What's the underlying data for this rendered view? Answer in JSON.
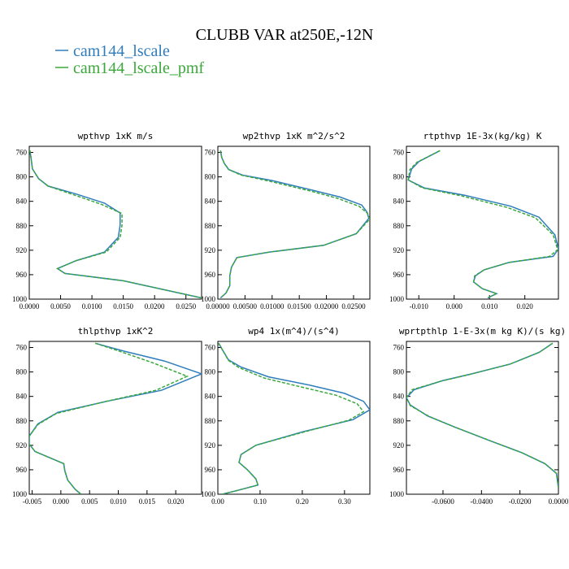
{
  "figure": {
    "title": "CLUBB VAR at250E,-12N",
    "legend": [
      {
        "name": "cam144_lscale",
        "color": "#2f7dbd",
        "dash": "solid"
      },
      {
        "name": "cam144_lscale_pmf",
        "color": "#3aa83a",
        "dash": "dashed"
      }
    ]
  },
  "chart_data": [
    {
      "type": "line",
      "title": "wpthvp  1xK m/s",
      "xlim": [
        0,
        0.0275
      ],
      "ylim": [
        1000,
        750
      ],
      "xticks": [
        0,
        0.005,
        0.01,
        0.015,
        0.02,
        0.025
      ],
      "xtick_labels": [
        "0.0000",
        "0.0050",
        "0.0100",
        "0.0150",
        "0.0200",
        "0.0250"
      ],
      "yticks": [
        760,
        800,
        840,
        880,
        920,
        960,
        1000
      ],
      "yticks_right": false,
      "series": [
        {
          "name": "cam144_lscale",
          "x": [
            0.0001,
            0.0003,
            0.0005,
            0.0015,
            0.003,
            0.0075,
            0.012,
            0.0145,
            0.0145,
            0.0142,
            0.012,
            0.0075,
            0.0045,
            0.0057,
            0.015,
            0.0275
          ],
          "y": [
            757,
            770,
            787,
            803,
            815,
            828,
            843,
            859,
            879,
            899,
            923,
            937,
            950,
            958,
            970,
            998
          ]
        },
        {
          "name": "cam144_lscale_pmf",
          "x": [
            0.0001,
            0.0003,
            0.0005,
            0.0015,
            0.003,
            0.007,
            0.0115,
            0.0148,
            0.0148,
            0.0145,
            0.0123,
            0.0075,
            0.0045,
            0.0057,
            0.015,
            0.0275
          ],
          "y": [
            757,
            770,
            787,
            803,
            815,
            829,
            845,
            860,
            879,
            899,
            923,
            937,
            950,
            958,
            970,
            998
          ]
        }
      ]
    },
    {
      "type": "line",
      "title": "wp2thvp  1xK m^2/s^2",
      "xlim": [
        0,
        0.028
      ],
      "ylim": [
        1000,
        750
      ],
      "xticks": [
        0,
        0.005,
        0.01,
        0.015,
        0.02,
        0.025
      ],
      "xtick_labels": [
        "0.00000",
        "0.00500",
        "0.01000",
        "0.01500",
        "0.02000",
        "0.02500"
      ],
      "yticks": [
        760,
        800,
        840,
        880,
        920,
        960,
        1000
      ],
      "yticks_right": false,
      "series": [
        {
          "name": "cam144_lscale",
          "x": [
            0.0005,
            0.0007,
            0.0012,
            0.002,
            0.0045,
            0.01,
            0.0175,
            0.0225,
            0.0265,
            0.0275,
            0.0278,
            0.0255,
            0.0195,
            0.0095,
            0.0035,
            0.0025,
            0.0022,
            0.0022,
            0.0015,
            0.0005
          ],
          "y": [
            757,
            768,
            778,
            788,
            797,
            806,
            822,
            833,
            846,
            858,
            868,
            893,
            912,
            923,
            932,
            948,
            962,
            978,
            990,
            998
          ]
        },
        {
          "name": "cam144_lscale_pmf",
          "x": [
            0.0005,
            0.0007,
            0.0012,
            0.002,
            0.0042,
            0.0095,
            0.017,
            0.022,
            0.026,
            0.0275,
            0.028,
            0.0255,
            0.0195,
            0.0095,
            0.0035,
            0.0025,
            0.0022,
            0.0022,
            0.0015,
            0.0005
          ],
          "y": [
            757,
            768,
            778,
            788,
            797,
            807,
            823,
            835,
            848,
            859,
            869,
            893,
            912,
            923,
            932,
            948,
            962,
            978,
            990,
            998
          ]
        }
      ]
    },
    {
      "type": "line",
      "title": "rtpthvp  1E-3x(kg/kg) K",
      "xlim": [
        -0.0135,
        0.0295
      ],
      "ylim": [
        1000,
        750
      ],
      "xticks": [
        -0.01,
        0,
        0.01,
        0.02
      ],
      "xtick_labels": [
        "-0.010",
        "0.000",
        "0.010",
        "0.020"
      ],
      "yticks": [
        760,
        800,
        840,
        880,
        920,
        960,
        1000
      ],
      "yticks_right": false,
      "series": [
        {
          "name": "cam144_lscale",
          "x": [
            -0.004,
            -0.01,
            -0.012,
            -0.013,
            -0.0085,
            0.003,
            0.016,
            0.024,
            0.0285,
            0.0295,
            0.028,
            0.0155,
            0.0085,
            0.006,
            0.0055,
            0.008,
            0.012,
            0.0095
          ],
          "y": [
            757,
            775,
            787,
            805,
            818,
            830,
            848,
            866,
            895,
            918,
            930,
            940,
            952,
            962,
            972,
            983,
            991,
            998
          ]
        },
        {
          "name": "cam144_lscale_pmf",
          "x": [
            -0.004,
            -0.0105,
            -0.0125,
            -0.013,
            -0.009,
            0.002,
            0.015,
            0.023,
            0.028,
            0.0293,
            0.027,
            0.0155,
            0.0085,
            0.0058,
            0.0055,
            0.008,
            0.012,
            0.0095
          ],
          "y": [
            757,
            776,
            788,
            805,
            818,
            831,
            850,
            867,
            895,
            919,
            930,
            940,
            952,
            962,
            972,
            983,
            991,
            998
          ]
        }
      ]
    },
    {
      "type": "line",
      "title": "thlpthvp  1xK^2",
      "xlim": [
        -0.0055,
        0.0245
      ],
      "ylim": [
        1000,
        750
      ],
      "xticks": [
        -0.005,
        0,
        0.005,
        0.01,
        0.015,
        0.02
      ],
      "xtick_labels": [
        "-0.005",
        "0.000",
        "0.005",
        "0.010",
        "0.015",
        "0.020"
      ],
      "yticks": [
        760,
        800,
        840,
        880,
        920,
        960,
        1000
      ],
      "yticks_right": false,
      "series": [
        {
          "name": "cam144_lscale",
          "x": [
            0.006,
            0.011,
            0.018,
            0.0245,
            0.0175,
            0.008,
            -0.0005,
            -0.004,
            -0.0055,
            -0.0055,
            -0.0045,
            0.0005,
            0.0007,
            0.0012,
            0.0025,
            0.0035
          ],
          "y": [
            753,
            766,
            782,
            803,
            830,
            848,
            866,
            885,
            905,
            918,
            930,
            950,
            962,
            977,
            992,
            1000
          ]
        },
        {
          "name": "cam144_lscale_pmf",
          "x": [
            0.006,
            0.0105,
            0.016,
            0.022,
            0.0165,
            0.0075,
            -0.0008,
            -0.004,
            -0.0055,
            -0.0055,
            -0.0045,
            0.0005,
            0.0007,
            0.0012,
            0.0025,
            0.0035
          ],
          "y": [
            753,
            767,
            785,
            807,
            830,
            849,
            868,
            886,
            905,
            918,
            930,
            950,
            962,
            977,
            992,
            1000
          ]
        }
      ]
    },
    {
      "type": "line",
      "title": "wp4  1x(m^4)/(s^4)",
      "xlim": [
        0,
        0.36
      ],
      "ylim": [
        1000,
        750
      ],
      "xticks": [
        0,
        0.1,
        0.2,
        0.3
      ],
      "xtick_labels": [
        "0.00",
        "0.10",
        "0.20",
        "0.30"
      ],
      "yticks": [
        760,
        800,
        840,
        880,
        920,
        960,
        1000
      ],
      "yticks_right": false,
      "series": [
        {
          "name": "cam144_lscale",
          "x": [
            0.002,
            0.012,
            0.025,
            0.055,
            0.12,
            0.22,
            0.3,
            0.345,
            0.36,
            0.32,
            0.2,
            0.09,
            0.055,
            0.05,
            0.07,
            0.09,
            0.095,
            0.04,
            0.01
          ],
          "y": [
            753,
            765,
            780,
            792,
            808,
            822,
            835,
            848,
            862,
            878,
            898,
            920,
            935,
            948,
            960,
            975,
            985,
            995,
            1000
          ]
        },
        {
          "name": "cam144_lscale_pmf",
          "x": [
            0.002,
            0.012,
            0.025,
            0.05,
            0.11,
            0.2,
            0.28,
            0.33,
            0.345,
            0.31,
            0.2,
            0.09,
            0.055,
            0.05,
            0.07,
            0.09,
            0.095,
            0.04,
            0.01
          ],
          "y": [
            753,
            765,
            781,
            793,
            810,
            825,
            838,
            852,
            865,
            879,
            899,
            920,
            935,
            948,
            960,
            975,
            985,
            995,
            1000
          ]
        }
      ]
    },
    {
      "type": "line",
      "title": "wprtpthlp  1-E-3x(m kg K)/(s kg)",
      "xlim": [
        -0.079,
        0
      ],
      "ylim": [
        1000,
        750
      ],
      "xticks": [
        -0.06,
        -0.04,
        -0.02,
        0
      ],
      "xtick_labels": [
        "-0.0600",
        "-0.0400",
        "-0.0200",
        "0.0000"
      ],
      "yticks": [
        760,
        800,
        840,
        880,
        920,
        960,
        1000
      ],
      "yticks_right": true,
      "series": [
        {
          "name": "cam144_lscale",
          "x": [
            -0.003,
            -0.01,
            -0.025,
            -0.045,
            -0.06,
            -0.075,
            -0.079,
            -0.077,
            -0.068,
            -0.054,
            -0.036,
            -0.019,
            -0.007,
            -0.001,
            0
          ],
          "y": [
            753,
            768,
            787,
            803,
            814,
            829,
            842,
            854,
            872,
            890,
            912,
            932,
            950,
            966,
            990
          ]
        },
        {
          "name": "cam144_lscale_pmf",
          "x": [
            -0.003,
            -0.01,
            -0.025,
            -0.046,
            -0.061,
            -0.076,
            -0.079,
            -0.077,
            -0.067,
            -0.054,
            -0.036,
            -0.019,
            -0.007,
            -0.001,
            0
          ],
          "y": [
            753,
            768,
            787,
            804,
            815,
            829,
            842,
            855,
            873,
            890,
            912,
            932,
            950,
            966,
            990
          ]
        }
      ]
    }
  ]
}
